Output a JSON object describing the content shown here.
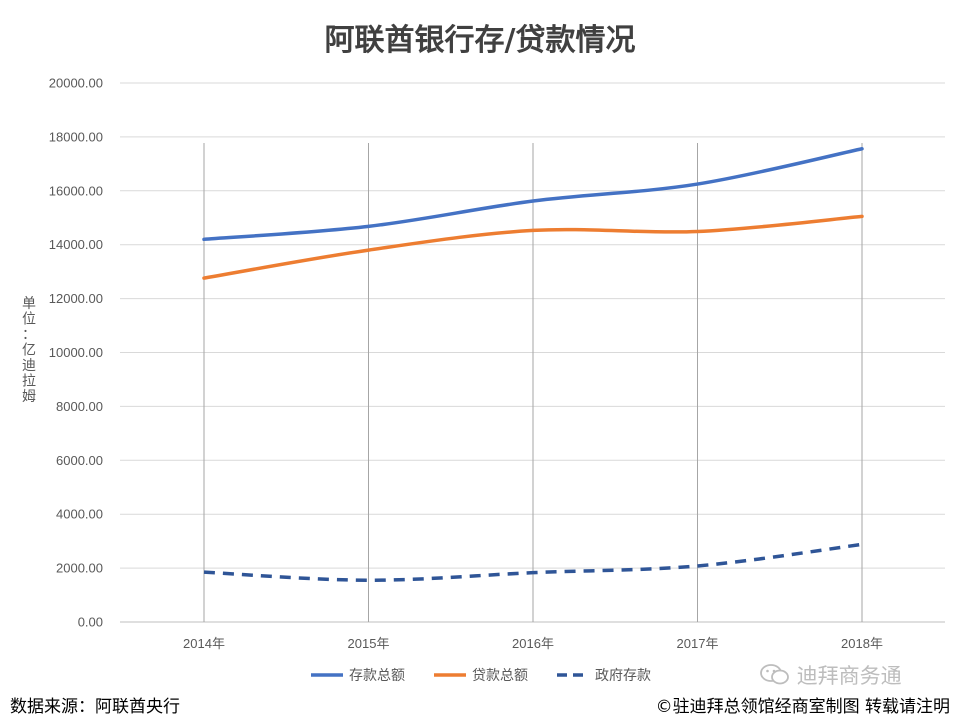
{
  "chart_data": {
    "type": "line",
    "title": "阿联酋银行存/贷款情况",
    "ylabel": "单位：亿迪拉姆",
    "xlabel": "",
    "categories": [
      "2014年",
      "2015年",
      "2016年",
      "2017年",
      "2018年"
    ],
    "ylim": [
      0,
      20000
    ],
    "yticks": [
      "0.00",
      "2000.00",
      "4000.00",
      "6000.00",
      "8000.00",
      "10000.00",
      "12000.00",
      "14000.00",
      "16000.00",
      "18000.00",
      "20000.00"
    ],
    "grid": true,
    "legend_position": "bottom",
    "series": [
      {
        "name": "存款总额",
        "values": [
          14200,
          14680,
          15620,
          16250,
          17560
        ],
        "color": "#4472C4",
        "style": "solid"
      },
      {
        "name": "贷款总额",
        "values": [
          12760,
          13800,
          14530,
          14490,
          15050
        ],
        "color": "#ED7D31",
        "style": "solid"
      },
      {
        "name": "政府存款",
        "values": [
          1850,
          1550,
          1830,
          2080,
          2880
        ],
        "color": "#2F5597",
        "style": "dashed"
      }
    ]
  },
  "footer": {
    "source": "数据来源：阿联酋央行",
    "copyright": "©驻迪拜总领馆经商室制图 转载请注明"
  },
  "watermark": {
    "text": "迪拜商务通",
    "icon": "wechat-icon"
  }
}
